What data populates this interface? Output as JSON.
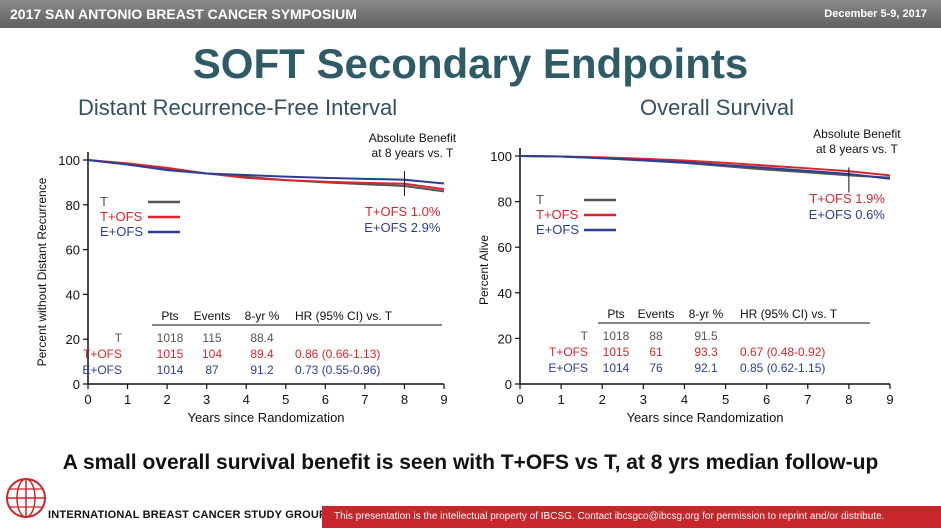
{
  "header": {
    "symposium": "2017 SAN ANTONIO BREAST CANCER SYMPOSIUM",
    "dates": "December 5-9, 2017"
  },
  "slide": {
    "title": "SOFT Secondary Endpoints",
    "caption": "A small overall survival benefit is seen with T+OFS vs T, at 8 yrs median follow-up"
  },
  "footer": {
    "org": "INTERNATIONAL BREAST CANCER STUDY GROUP",
    "notice": "This presentation is the intellectual property of IBCSG. Contact ibcsgco@ibcsg.org for permission to reprint and/or distribute."
  },
  "colors": {
    "T": "#555555",
    "T+OFS": "#d9262c",
    "E+OFS": "#2b3f95"
  },
  "chart_data": [
    {
      "type": "line",
      "title": "Distant Recurrence-Free Interval",
      "xlabel": "Years since Randomization",
      "ylabel": "Percent without Distant Recurrence",
      "xlim": [
        0,
        9
      ],
      "ylim": [
        0,
        100
      ],
      "xticks": [
        0,
        1,
        2,
        3,
        4,
        5,
        6,
        7,
        8,
        9
      ],
      "yticks": [
        0,
        20,
        40,
        60,
        80,
        100
      ],
      "annotation": "Absolute Benefit\nat 8 years vs. T",
      "annotation_x": 8,
      "benefits": [
        {
          "label": "T+OFS 1.0%",
          "series": "T+OFS"
        },
        {
          "label": "E+OFS 2.9%",
          "series": "E+OFS"
        }
      ],
      "legend": [
        "T",
        "T+OFS",
        "E+OFS"
      ],
      "table": {
        "headers": [
          "Pts",
          "Events",
          "8-yr %",
          "HR (95% CI) vs. T"
        ],
        "rows": [
          {
            "arm": "T",
            "pts": "1018",
            "events": "115",
            "yr8": "88.4",
            "hr": ""
          },
          {
            "arm": "T+OFS",
            "pts": "1015",
            "events": "104",
            "yr8": "89.4",
            "hr": "0.86 (0.66-1.13)"
          },
          {
            "arm": "E+OFS",
            "pts": "1014",
            "events": "87",
            "yr8": "91.2",
            "hr": "0.73 (0.55-0.96)"
          }
        ]
      },
      "series": [
        {
          "name": "T",
          "x": [
            0,
            1,
            2,
            3,
            4,
            5,
            6,
            7,
            8,
            9
          ],
          "y": [
            100,
            98,
            96,
            94,
            92.5,
            91,
            90,
            89.2,
            88.4,
            86
          ]
        },
        {
          "name": "T+OFS",
          "x": [
            0,
            1,
            2,
            3,
            4,
            5,
            6,
            7,
            8,
            9
          ],
          "y": [
            100,
            98.5,
            96.5,
            94,
            92,
            91,
            90.3,
            89.8,
            89.4,
            87
          ]
        },
        {
          "name": "E+OFS",
          "x": [
            0,
            1,
            2,
            3,
            4,
            5,
            6,
            7,
            8,
            9
          ],
          "y": [
            100,
            98,
            95.5,
            94,
            93.3,
            92.6,
            92,
            91.6,
            91.2,
            89.5
          ]
        }
      ]
    },
    {
      "type": "line",
      "title": "Overall Survival",
      "xlabel": "Years since Randomization",
      "ylabel": "Percent Alive",
      "xlim": [
        0,
        9
      ],
      "ylim": [
        0,
        100
      ],
      "xticks": [
        0,
        1,
        2,
        3,
        4,
        5,
        6,
        7,
        8,
        9
      ],
      "yticks": [
        0,
        20,
        40,
        60,
        80,
        100
      ],
      "annotation": "Absolute Benefit\nat 8 years vs. T",
      "annotation_x": 8,
      "benefits": [
        {
          "label": "T+OFS 1.9%",
          "series": "T+OFS"
        },
        {
          "label": "E+OFS 0.6%",
          "series": "E+OFS"
        }
      ],
      "legend": [
        "T",
        "T+OFS",
        "E+OFS"
      ],
      "table": {
        "headers": [
          "Pts",
          "Events",
          "8-yr %",
          "HR (95% CI) vs. T"
        ],
        "rows": [
          {
            "arm": "T",
            "pts": "1018",
            "events": "88",
            "yr8": "91.5",
            "hr": ""
          },
          {
            "arm": "T+OFS",
            "pts": "1015",
            "events": "61",
            "yr8": "93.3",
            "hr": "0.67 (0.48-0.92)"
          },
          {
            "arm": "E+OFS",
            "pts": "1014",
            "events": "76",
            "yr8": "92.1",
            "hr": "0.85 (0.62-1.15)"
          }
        ]
      },
      "series": [
        {
          "name": "T",
          "x": [
            0,
            1,
            2,
            3,
            4,
            5,
            6,
            7,
            8,
            9
          ],
          "y": [
            100,
            99.8,
            99,
            98,
            97,
            95.5,
            94,
            92.8,
            91.5,
            90.5
          ]
        },
        {
          "name": "T+OFS",
          "x": [
            0,
            1,
            2,
            3,
            4,
            5,
            6,
            7,
            8,
            9
          ],
          "y": [
            100,
            99.8,
            99.4,
            98.8,
            98,
            97,
            95.8,
            94.6,
            93.3,
            91.5
          ]
        },
        {
          "name": "E+OFS",
          "x": [
            0,
            1,
            2,
            3,
            4,
            5,
            6,
            7,
            8,
            9
          ],
          "y": [
            100,
            99.8,
            99,
            98.2,
            97.3,
            96,
            94.8,
            93.5,
            92.1,
            90
          ]
        }
      ]
    }
  ]
}
